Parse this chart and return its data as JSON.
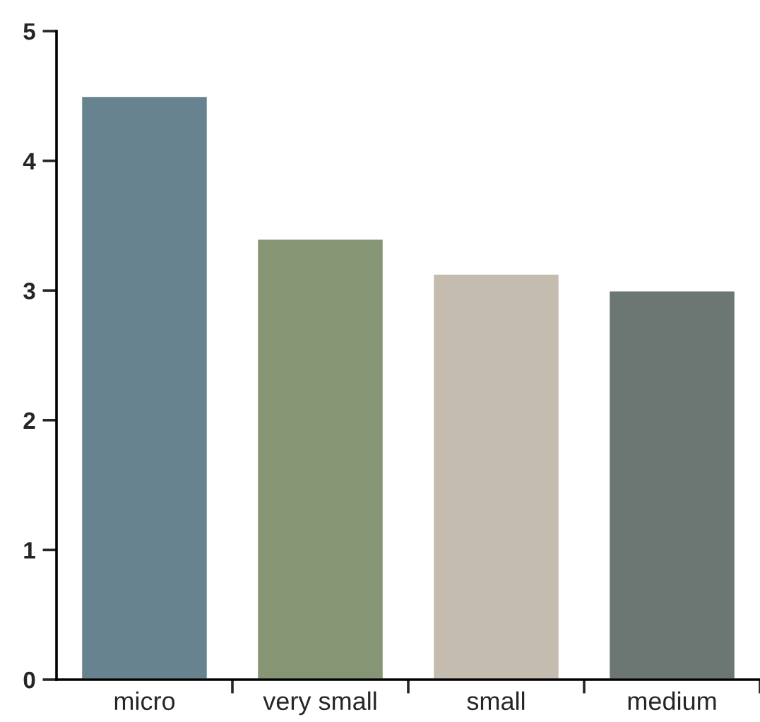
{
  "chart_data": {
    "type": "bar",
    "categories": [
      "micro",
      "very small",
      "small",
      "medium"
    ],
    "values": [
      4.5,
      3.4,
      3.13,
      3.0
    ],
    "colors": [
      "#678390",
      "#869573",
      "#c5bcb0",
      "#6c7673"
    ],
    "ylim": [
      0,
      5
    ],
    "yticks": [
      0,
      1,
      2,
      3,
      4,
      5
    ],
    "grid": false,
    "legend": false
  }
}
